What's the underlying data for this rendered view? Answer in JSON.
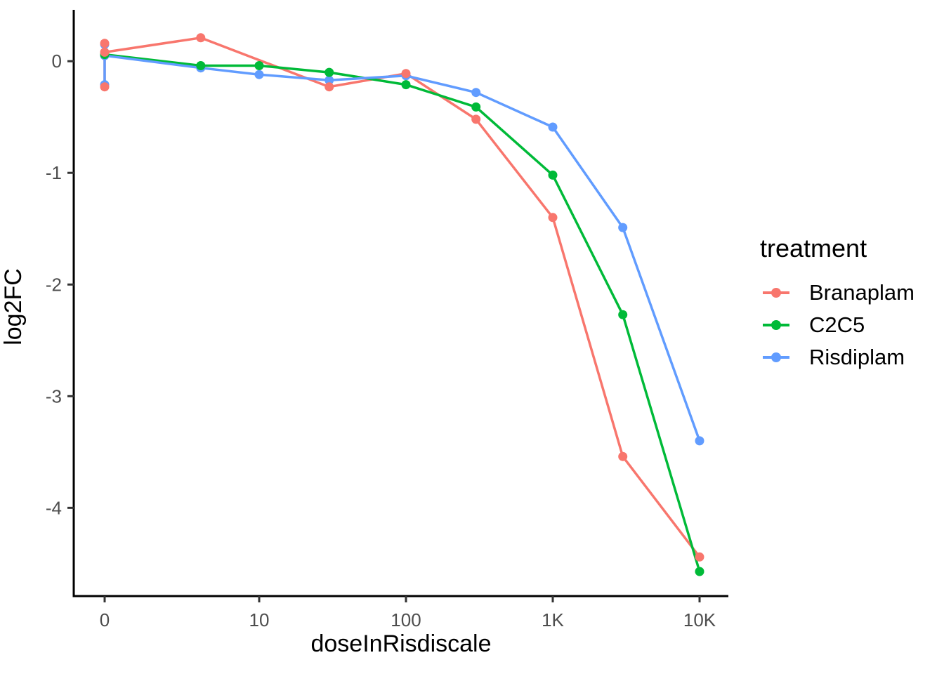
{
  "figure": {
    "background": "#FFFFFF"
  },
  "chart_data": {
    "type": "line",
    "title": "",
    "xlabel": "doseInRisdiscale",
    "ylabel": "log2FC",
    "x_scale": "log10-with-zero-category",
    "xlim_log": [
      0,
      10000
    ],
    "ylim": [
      -4.79,
      0.46
    ],
    "grid": "off",
    "x_ticks": [
      {
        "value": 0,
        "label": "0"
      },
      {
        "value": 10,
        "label": "10"
      },
      {
        "value": 100,
        "label": "100"
      },
      {
        "value": 1000,
        "label": "1K"
      },
      {
        "value": 10000,
        "label": "10K"
      }
    ],
    "y_ticks": [
      {
        "value": 0,
        "label": "0"
      },
      {
        "value": -1,
        "label": "-1"
      },
      {
        "value": -2,
        "label": "-2"
      },
      {
        "value": -3,
        "label": "-3"
      },
      {
        "value": -4,
        "label": "-4"
      }
    ],
    "axis_line_color": "#000000",
    "tick_mark_color": "#333333",
    "axis_text_color": "#4D4D4D",
    "axis_title_color": "#000000",
    "legend": {
      "title": "treatment",
      "position": "right"
    },
    "series": [
      {
        "name": "Branaplam",
        "color": "#F8766D",
        "points": [
          [
            0,
            0.16
          ],
          [
            0,
            -0.23
          ],
          [
            0,
            0.08
          ],
          [
            4,
            0.21
          ],
          [
            30,
            -0.23
          ],
          [
            100,
            -0.11
          ],
          [
            300,
            -0.52
          ],
          [
            1000,
            -1.4
          ],
          [
            3000,
            -3.54
          ],
          [
            10000,
            -4.44
          ]
        ]
      },
      {
        "name": "C2C5",
        "color": "#00BA38",
        "points": [
          [
            0,
            0.06
          ],
          [
            4,
            -0.04
          ],
          [
            10,
            -0.04
          ],
          [
            30,
            -0.1
          ],
          [
            100,
            -0.21
          ],
          [
            300,
            -0.41
          ],
          [
            1000,
            -1.02
          ],
          [
            3000,
            -2.27
          ],
          [
            10000,
            -4.57
          ]
        ]
      },
      {
        "name": "Risdiplam",
        "color": "#619CFF",
        "points": [
          [
            0,
            0.15
          ],
          [
            0,
            -0.21
          ],
          [
            0,
            0.05
          ],
          [
            4,
            -0.06
          ],
          [
            10,
            -0.12
          ],
          [
            30,
            -0.17
          ],
          [
            100,
            -0.13
          ],
          [
            300,
            -0.28
          ],
          [
            1000,
            -0.59
          ],
          [
            3000,
            -1.49
          ],
          [
            10000,
            -3.4
          ]
        ]
      }
    ]
  }
}
